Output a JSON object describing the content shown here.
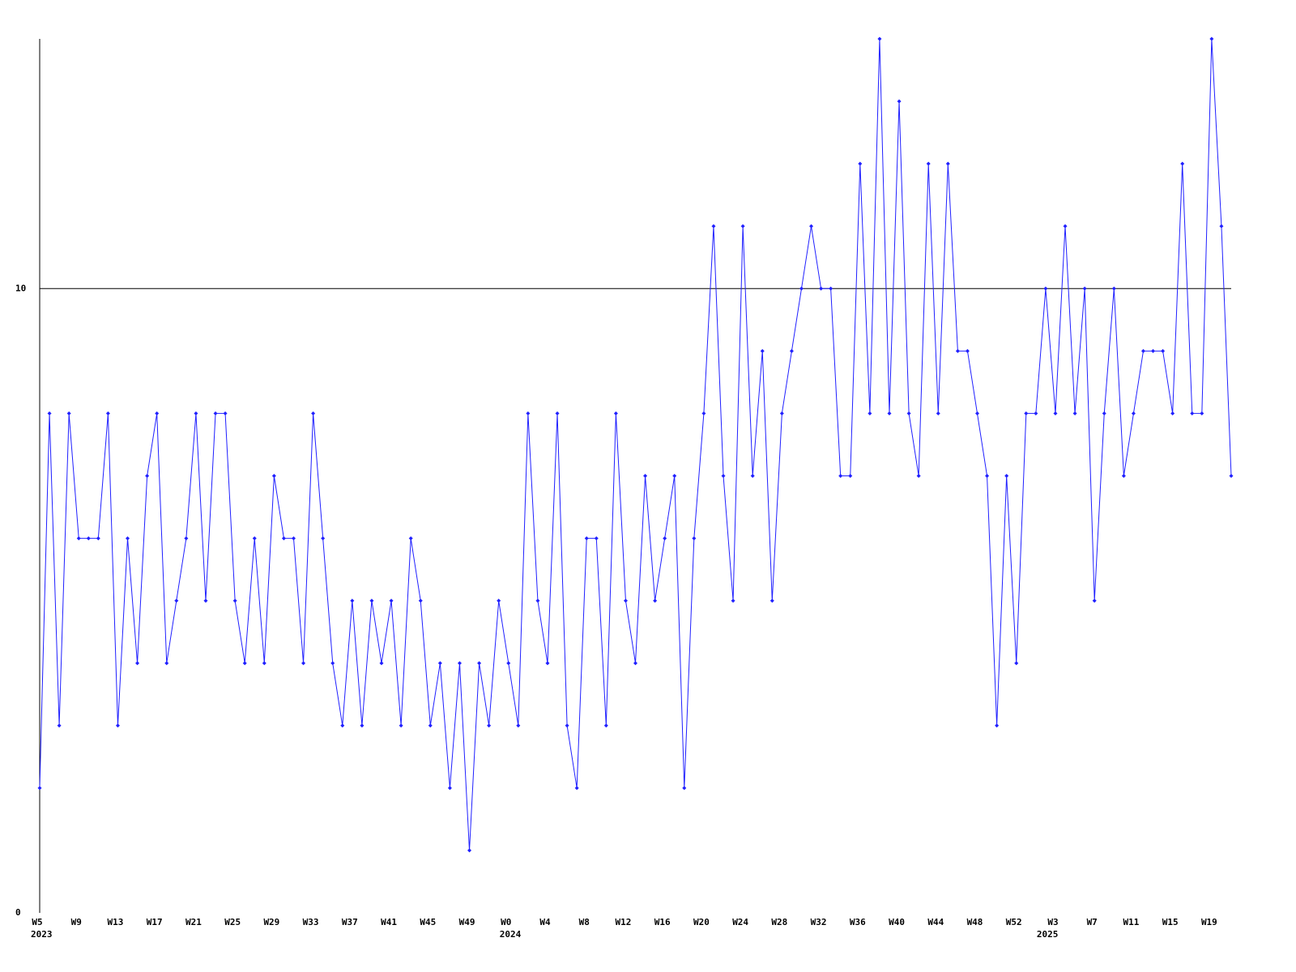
{
  "chart_data": {
    "type": "line",
    "categories": [
      "W5",
      null,
      null,
      null,
      "W9",
      null,
      null,
      null,
      "W13",
      null,
      null,
      null,
      "W17",
      null,
      null,
      null,
      "W21",
      null,
      null,
      null,
      "W25",
      null,
      null,
      null,
      "W29",
      null,
      null,
      null,
      "W33",
      null,
      null,
      null,
      "W37",
      null,
      null,
      null,
      "W41",
      null,
      null,
      null,
      "W45",
      null,
      null,
      null,
      "W49",
      null,
      null,
      null,
      "W0",
      null,
      null,
      null,
      "W4",
      null,
      null,
      null,
      "W8",
      null,
      null,
      null,
      "W12",
      null,
      null,
      null,
      "W16",
      null,
      null,
      null,
      "W20",
      null,
      null,
      null,
      "W24",
      null,
      null,
      null,
      "W28",
      null,
      null,
      null,
      "W32",
      null,
      null,
      null,
      "W36",
      null,
      null,
      null,
      "W40",
      null,
      null,
      null,
      "W44",
      null,
      null,
      null,
      "W48",
      null,
      null,
      null,
      "W52",
      null,
      null,
      null,
      "W3",
      null,
      null,
      null,
      "W7",
      null,
      null,
      null,
      "W11",
      null,
      null,
      null,
      "W15",
      null,
      null,
      null,
      "W19",
      null,
      null
    ],
    "years": [
      "2023",
      null,
      null,
      null,
      null,
      null,
      null,
      null,
      null,
      null,
      null,
      null,
      null,
      null,
      null,
      null,
      null,
      null,
      null,
      null,
      null,
      null,
      null,
      null,
      null,
      null,
      null,
      null,
      null,
      null,
      null,
      null,
      null,
      null,
      null,
      null,
      null,
      null,
      null,
      null,
      null,
      null,
      null,
      null,
      null,
      null,
      null,
      null,
      "2024",
      null,
      null,
      null,
      null,
      null,
      null,
      null,
      null,
      null,
      null,
      null,
      null,
      null,
      null,
      null,
      null,
      null,
      null,
      null,
      null,
      null,
      null,
      null,
      null,
      null,
      null,
      null,
      null,
      null,
      null,
      null,
      null,
      null,
      null,
      null,
      null,
      null,
      null,
      null,
      null,
      null,
      null,
      null,
      null,
      null,
      null,
      null,
      null,
      null,
      null,
      null,
      null,
      null,
      null,
      "2025",
      null,
      null,
      null,
      null,
      null,
      null,
      null,
      null,
      null,
      null,
      null,
      null,
      null,
      null,
      null,
      null,
      null,
      null,
      null,
      null,
      null
    ],
    "series": [
      {
        "color": "#2020ff",
        "values": [
          2,
          8,
          3,
          8,
          6,
          6,
          6,
          8,
          3,
          6,
          4,
          7,
          8,
          4,
          5,
          6,
          8,
          5,
          8,
          8,
          5,
          4,
          6,
          4,
          7,
          6,
          6,
          4,
          8,
          6,
          4,
          3,
          5,
          3,
          5,
          4,
          5,
          3,
          6,
          5,
          3,
          4,
          2,
          4,
          1,
          4,
          3,
          5,
          4,
          3,
          8,
          5,
          4,
          8,
          3,
          2,
          6,
          6,
          3,
          8,
          5,
          4,
          7,
          5,
          6,
          7,
          2,
          6,
          8,
          11,
          7,
          5,
          11,
          7,
          9,
          5,
          8,
          9,
          10,
          11,
          10,
          10,
          7,
          7,
          12,
          8,
          14,
          8,
          13,
          8,
          7,
          12,
          8,
          12,
          9,
          9,
          8,
          7,
          3,
          7,
          4,
          8,
          8,
          10,
          8,
          11,
          8,
          10,
          5,
          8,
          10,
          7,
          8,
          9,
          9,
          9,
          8,
          12,
          8,
          8,
          14,
          11,
          7
        ]
      }
    ],
    "ylim": [
      0,
      14
    ],
    "yticks": [
      0,
      10
    ],
    "grid": true
  }
}
